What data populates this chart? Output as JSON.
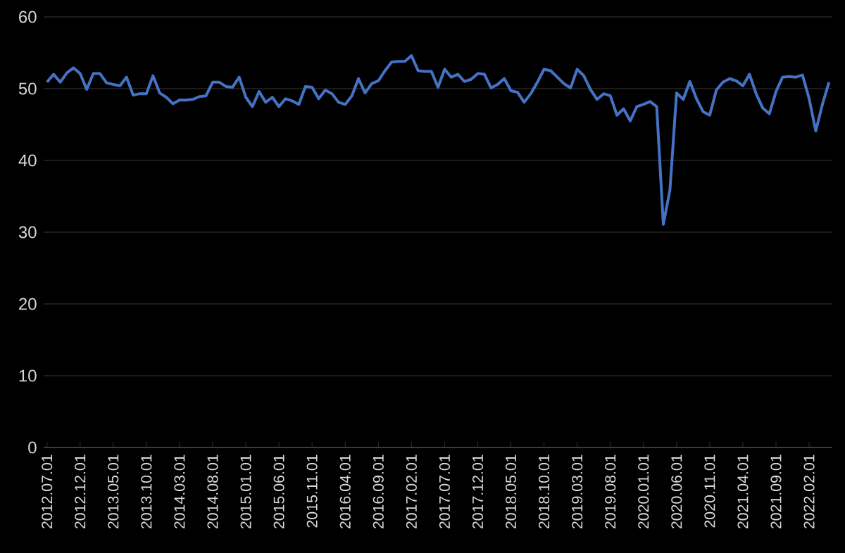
{
  "chart_data": {
    "type": "line",
    "categories": [
      "2012.07.01",
      null,
      null,
      null,
      null,
      "2012.12.01",
      null,
      null,
      null,
      null,
      "2013.05.01",
      null,
      null,
      null,
      null,
      "2013.10.01",
      null,
      null,
      null,
      null,
      "2014.03.01",
      null,
      null,
      null,
      null,
      "2014.08.01",
      null,
      null,
      null,
      null,
      "2015.01.01",
      null,
      null,
      null,
      null,
      "2015.06.01",
      null,
      null,
      null,
      null,
      "2015.11.01",
      null,
      null,
      null,
      null,
      "2016.04.01",
      null,
      null,
      null,
      null,
      "2016.09.01",
      null,
      null,
      null,
      null,
      "2017.02.01",
      null,
      null,
      null,
      null,
      "2017.07.01",
      null,
      null,
      null,
      null,
      "2017.12.01",
      null,
      null,
      null,
      null,
      "2018.05.01",
      null,
      null,
      null,
      null,
      "2018.10.01",
      null,
      null,
      null,
      null,
      "2019.03.01",
      null,
      null,
      null,
      null,
      "2019.08.01",
      null,
      null,
      null,
      null,
      "2020.01.01",
      null,
      null,
      null,
      null,
      "2020.06.01",
      null,
      null,
      null,
      null,
      "2020.11.01",
      null,
      null,
      null,
      null,
      "2021.04.01",
      null,
      null,
      null,
      null,
      "2021.09.01",
      null,
      null,
      null,
      null,
      "2022.02.01",
      null,
      null,
      null
    ],
    "series": [
      {
        "color": "#4472c4",
        "values": [
          50.9,
          52.0,
          50.9,
          52.2,
          52.9,
          52.1,
          49.9,
          52.1,
          52.1,
          50.8,
          50.6,
          50.4,
          51.6,
          49.1,
          49.3,
          49.3,
          51.8,
          49.4,
          48.8,
          47.9,
          48.4,
          48.4,
          48.5,
          48.9,
          49.0,
          50.9,
          50.9,
          50.3,
          50.2,
          51.6,
          48.8,
          47.5,
          49.6,
          48.1,
          48.8,
          47.5,
          48.6,
          48.3,
          47.8,
          50.3,
          50.2,
          48.6,
          49.8,
          49.3,
          48.1,
          47.8,
          49.0,
          51.4,
          49.4,
          50.7,
          51.1,
          52.5,
          53.7,
          53.8,
          53.8,
          54.6,
          52.5,
          52.4,
          52.4,
          50.2,
          52.7,
          51.6,
          52.0,
          51.0,
          51.3,
          52.1,
          52.0,
          50.1,
          50.6,
          51.4,
          49.7,
          49.5,
          48.1,
          49.3,
          50.9,
          52.7,
          52.5,
          51.6,
          50.7,
          50.1,
          52.7,
          51.8,
          49.9,
          48.5,
          49.3,
          49.0,
          46.3,
          47.2,
          45.5,
          47.5,
          47.8,
          48.2,
          47.5,
          31.1,
          35.9,
          49.4,
          48.5,
          51.0,
          48.6,
          46.8,
          46.3,
          49.8,
          50.9,
          51.4,
          51.1,
          50.4,
          52.0,
          49.3,
          47.3,
          46.5,
          49.6,
          51.6,
          51.7,
          51.6,
          51.9,
          48.6,
          44.1,
          47.8,
          50.9
        ]
      }
    ],
    "ylim": [
      0,
      60
    ],
    "yticks": [
      0,
      10,
      20,
      30,
      40,
      50,
      60
    ],
    "grid": "y",
    "legend": false,
    "marker": "none",
    "line_style": "solid"
  }
}
